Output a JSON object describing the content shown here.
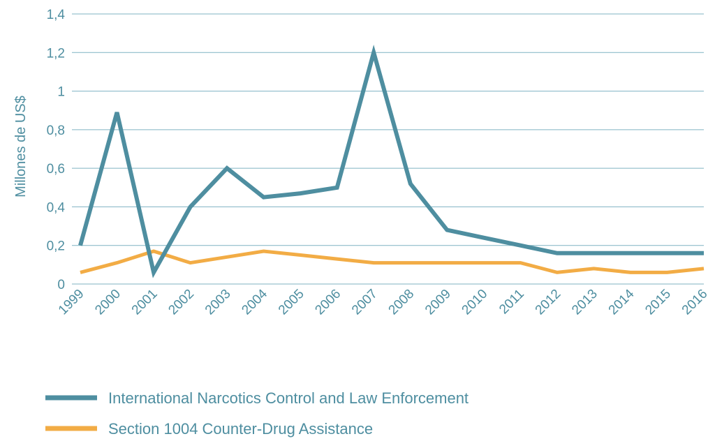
{
  "chart_data": {
    "type": "line",
    "ylabel": "Millones de US$",
    "xlabel": "",
    "ylim": [
      0,
      1.4
    ],
    "yticks": [
      "0",
      "0,2",
      "0,4",
      "0,6",
      "0,8",
      "1",
      "1,2",
      "1,4"
    ],
    "yticks_values": [
      0,
      0.2,
      0.4,
      0.6,
      0.8,
      1,
      1.2,
      1.4
    ],
    "grid": "horizontal",
    "legend_position": "bottom-left",
    "categories": [
      "1999",
      "2000",
      "2001",
      "2002",
      "2003",
      "2004",
      "2005",
      "2006",
      "2007",
      "2008",
      "2009",
      "2010",
      "2011",
      "2012",
      "2013",
      "2014",
      "2015",
      "2016"
    ],
    "series": [
      {
        "name": "International Narcotics Control and Law Enforcement",
        "color": "#4e8ea0",
        "values": [
          0.2,
          0.89,
          0.06,
          0.4,
          0.6,
          0.45,
          0.47,
          0.5,
          1.2,
          0.52,
          0.28,
          0.24,
          0.2,
          0.16,
          0.16,
          0.16,
          0.16,
          0.16
        ]
      },
      {
        "name": "Section 1004 Counter-Drug Assistance",
        "color": "#f2ac45",
        "values": [
          0.06,
          0.11,
          0.17,
          0.11,
          0.14,
          0.17,
          0.15,
          0.13,
          0.11,
          0.11,
          0.11,
          0.11,
          0.11,
          0.06,
          0.08,
          0.06,
          0.06,
          0.08
        ]
      }
    ]
  }
}
